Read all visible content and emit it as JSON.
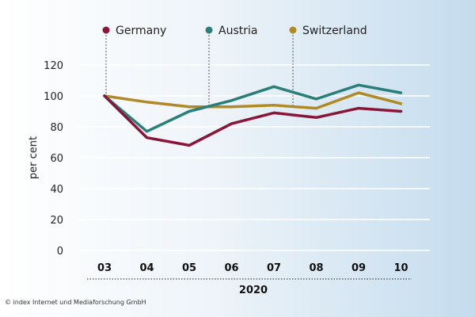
{
  "credit": "© index Internet und Mediaforschung GmbH",
  "chart_data": {
    "type": "line",
    "title": "",
    "xlabel": "2020",
    "ylabel": "per cent",
    "categories": [
      "03",
      "04",
      "05",
      "06",
      "07",
      "08",
      "09",
      "10"
    ],
    "ylim": [
      0,
      120
    ],
    "yticks": [
      0,
      20,
      40,
      60,
      80,
      100,
      120
    ],
    "grid": true,
    "legend_position": "top",
    "series": [
      {
        "name": "Germany",
        "color": "#8a1538",
        "values": [
          100,
          73,
          68,
          82,
          89,
          86,
          92,
          90
        ]
      },
      {
        "name": "Austria",
        "color": "#2a7f7a",
        "values": [
          100,
          77,
          90,
          97,
          106,
          98,
          107,
          102
        ]
      },
      {
        "name": "Switzerland",
        "color": "#b08a24",
        "values": [
          100,
          96,
          93,
          93,
          94,
          92,
          102,
          95
        ]
      }
    ]
  }
}
